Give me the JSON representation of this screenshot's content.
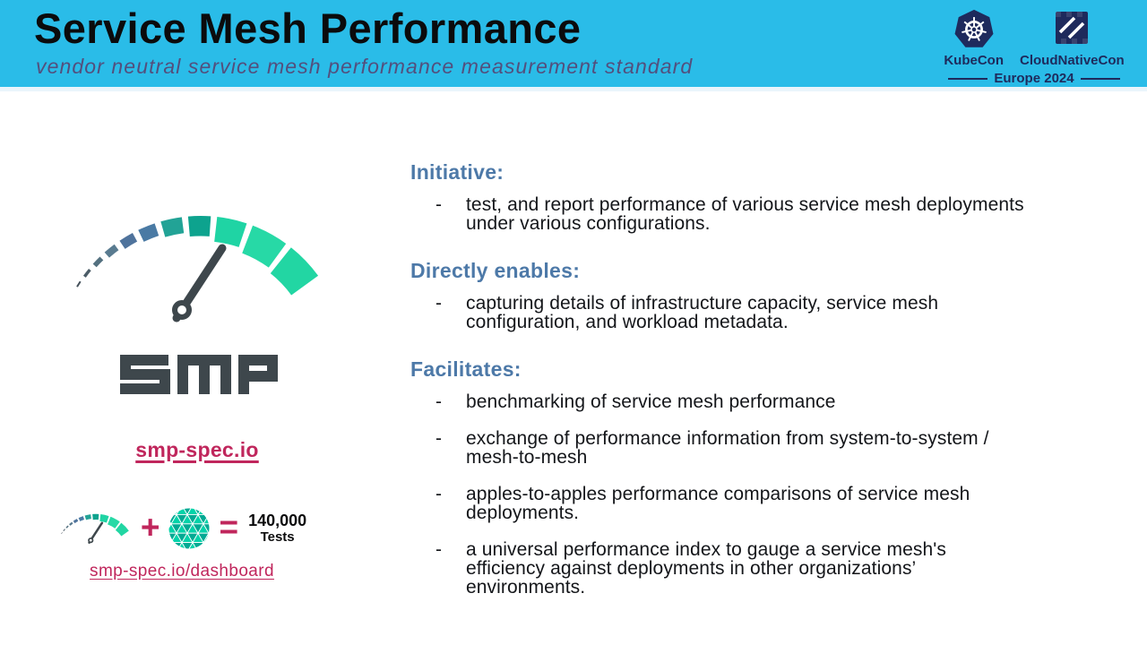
{
  "slide": {
    "title": "Service Mesh Performance",
    "subtitle": "vendor neutral service mesh performance measurement standard"
  },
  "event_badge": {
    "kubecon_label": "KubeCon",
    "cloudnativecon_label": "CloudNativeCon",
    "edition": "Europe 2024"
  },
  "smp": {
    "wordmark": "SMP",
    "website": "smp-spec.io",
    "dashboard_link": "smp-spec.io/dashboard",
    "formula": {
      "plus": "+",
      "equals": "=",
      "result_value": "140,000",
      "result_label": "Tests"
    }
  },
  "ui": {
    "bullet_marker": "-"
  },
  "sections": [
    {
      "heading": "Initiative:",
      "bullets": [
        "test, and report performance of various service mesh deployments under various configurations."
      ]
    },
    {
      "heading": "Directly enables:",
      "bullets": [
        "capturing details of infrastructure capacity, service mesh configuration, and workload metadata."
      ]
    },
    {
      "heading": "Facilitates:",
      "bullets": [
        "benchmarking of service mesh performance",
        "exchange of performance information from system-to-system / mesh-to-mesh",
        "apples-to-apples performance comparisons of service mesh deployments.",
        "a universal performance index to gauge a service mesh's efficiency against deployments in other organizations’ environments."
      ]
    }
  ],
  "colors": {
    "header_bar": "#2abce8",
    "subtitle_text": "#534f7d",
    "section_heading": "#4d79a8",
    "accent_pink": "#c0265c",
    "logo_navy": "#1e2a5c",
    "smp_dark": "#3e474c",
    "gauge_segments": [
      "#46525c",
      "#4c5d68",
      "#547180",
      "#597b90",
      "#4f739c",
      "#4a7aa4",
      "#22a396",
      "#0da38e",
      "#1fd4a4",
      "#27d9a6",
      "#22d6a3"
    ],
    "mesh_triangle_light": "#00d3a9",
    "mesh_triangle_dark": "#00a993"
  }
}
